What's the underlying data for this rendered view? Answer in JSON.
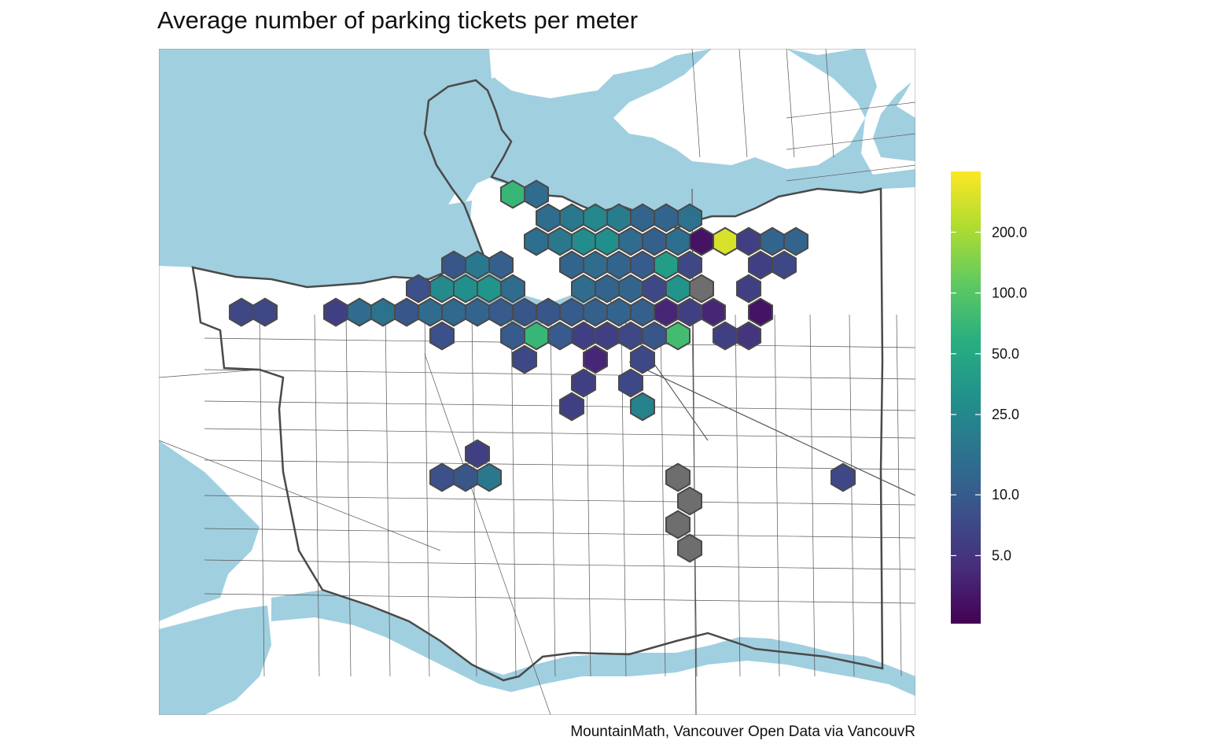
{
  "title": "Average number of parking tickets per meter",
  "caption": "MountainMath, Vancouver Open Data via VancouvR",
  "colors": {
    "water": "#a0cfe0",
    "land": "#ffffff",
    "road": "#444444",
    "boundary": "#4a4a4a",
    "na_fill": "#6e6e6e",
    "hex_outline": "#4a4a4a",
    "palette": [
      "#440154",
      "#472d7b",
      "#3b528b",
      "#2c728e",
      "#21918c",
      "#28ae80",
      "#5ec962",
      "#addc30",
      "#fde725"
    ]
  },
  "legend": {
    "title": "",
    "scale": "log",
    "domain": [
      2.3,
      400
    ],
    "ticks": [
      {
        "value": 5,
        "label": "5.0"
      },
      {
        "value": 10,
        "label": "10.0"
      },
      {
        "value": 25,
        "label": "25.0"
      },
      {
        "value": 50,
        "label": "50.0"
      },
      {
        "value": 100,
        "label": "100.0"
      },
      {
        "value": 200,
        "label": "200.0"
      }
    ]
  },
  "cells": [
    {
      "c": 1,
      "r": 5,
      "v": 7
    },
    {
      "c": 2,
      "r": 5,
      "v": 7
    },
    {
      "c": 5,
      "r": 5,
      "v": 6
    },
    {
      "c": 6,
      "r": 5,
      "v": 14
    },
    {
      "c": 7,
      "r": 5,
      "v": 16
    },
    {
      "c": 8,
      "r": 5,
      "v": 9
    },
    {
      "c": 9,
      "r": 5,
      "v": 14
    },
    {
      "c": 10,
      "r": 5,
      "v": 13
    },
    {
      "c": 11,
      "r": 5,
      "v": 12
    },
    {
      "c": 12,
      "r": 5,
      "v": 10
    },
    {
      "c": 13,
      "r": 5,
      "v": 9
    },
    {
      "c": 14,
      "r": 5,
      "v": 9
    },
    {
      "c": 15,
      "r": 5,
      "v": 10
    },
    {
      "c": 16,
      "r": 5,
      "v": 11
    },
    {
      "c": 17,
      "r": 5,
      "v": 12
    },
    {
      "c": 18,
      "r": 5,
      "v": 11
    },
    {
      "c": 19,
      "r": 5,
      "v": 4
    },
    {
      "c": 20,
      "r": 5,
      "v": 6
    },
    {
      "c": 21,
      "r": 5,
      "v": 4
    },
    {
      "c": 23,
      "r": 5,
      "v": 3
    },
    {
      "c": 9,
      "r": 4,
      "v": 8
    },
    {
      "c": 10,
      "r": 4,
      "v": 26
    },
    {
      "c": 11,
      "r": 4,
      "v": 30
    },
    {
      "c": 12,
      "r": 4,
      "v": 33
    },
    {
      "c": 13,
      "r": 4,
      "v": 14
    },
    {
      "c": 17,
      "r": 4,
      "v": 12
    },
    {
      "c": 18,
      "r": 4,
      "v": 12
    },
    {
      "c": 19,
      "r": 4,
      "v": 7
    },
    {
      "c": 20,
      "r": 4,
      "v": 33
    },
    {
      "c": 21,
      "r": 4,
      "v": null
    },
    {
      "c": 23,
      "r": 4,
      "v": 6
    },
    {
      "c": 10,
      "r": 3,
      "v": 9
    },
    {
      "c": 11,
      "r": 3,
      "v": 18
    },
    {
      "c": 12,
      "r": 3,
      "v": 11
    },
    {
      "c": 19,
      "r": 3,
      "v": 40
    },
    {
      "c": 20,
      "r": 3,
      "v": 7
    },
    {
      "c": 23,
      "r": 3,
      "v": 6
    },
    {
      "c": 10,
      "r": 6,
      "v": 8
    },
    {
      "c": 13,
      "r": 6,
      "v": 10
    },
    {
      "c": 14,
      "r": 6,
      "v": 70
    },
    {
      "c": 15,
      "r": 6,
      "v": 10
    },
    {
      "c": 16,
      "r": 6,
      "v": 6
    },
    {
      "c": 17,
      "r": 6,
      "v": 6
    },
    {
      "c": 18,
      "r": 6,
      "v": 7
    },
    {
      "c": 19,
      "r": 6,
      "v": 9
    },
    {
      "c": 20,
      "r": 6,
      "v": 80
    },
    {
      "c": 22,
      "r": 6,
      "v": 6
    },
    {
      "c": 23,
      "r": 6,
      "v": 5
    },
    {
      "c": 13,
      "r": 7,
      "v": 7
    },
    {
      "c": 16,
      "r": 7,
      "v": 4
    },
    {
      "c": 18,
      "r": 7,
      "v": 7
    },
    {
      "c": 16,
      "r": 8,
      "v": 6
    },
    {
      "c": 18,
      "r": 8,
      "v": 7
    },
    {
      "c": 15,
      "r": 9,
      "v": 6
    },
    {
      "c": 18,
      "r": 9,
      "v": 22
    },
    {
      "c": 11,
      "r": 11,
      "v": 6
    },
    {
      "c": 10,
      "r": 12,
      "v": 8
    },
    {
      "c": 11,
      "r": 12,
      "v": 9
    },
    {
      "c": 12,
      "r": 12,
      "v": 18
    },
    {
      "c": 27,
      "r": 12,
      "v": 7
    },
    {
      "c": 20,
      "r": 12,
      "v": null
    },
    {
      "c": 20,
      "r": 13,
      "v": null
    },
    {
      "c": 20,
      "r": 14,
      "v": null
    },
    {
      "c": 20,
      "r": 15,
      "v": null
    },
    {
      "c": 13,
      "r": 0,
      "v": 70
    },
    {
      "c": 14,
      "r": 0,
      "v": 14
    },
    {
      "c": 14,
      "r": 1,
      "v": 14
    },
    {
      "c": 15,
      "r": 1,
      "v": 18
    },
    {
      "c": 16,
      "r": 1,
      "v": 25
    },
    {
      "c": 17,
      "r": 1,
      "v": 20
    },
    {
      "c": 18,
      "r": 1,
      "v": 12
    },
    {
      "c": 19,
      "r": 1,
      "v": 12
    },
    {
      "c": 20,
      "r": 1,
      "v": 16
    },
    {
      "c": 14,
      "r": 2,
      "v": 15
    },
    {
      "c": 15,
      "r": 2,
      "v": 18
    },
    {
      "c": 16,
      "r": 2,
      "v": 28
    },
    {
      "c": 17,
      "r": 2,
      "v": 30
    },
    {
      "c": 18,
      "r": 2,
      "v": 14
    },
    {
      "c": 19,
      "r": 2,
      "v": 11
    },
    {
      "c": 20,
      "r": 2,
      "v": 15
    },
    {
      "c": 21,
      "r": 2,
      "v": 3
    },
    {
      "c": 22,
      "r": 2,
      "v": 300
    },
    {
      "c": 23,
      "r": 2,
      "v": 6
    },
    {
      "c": 24,
      "r": 2,
      "v": 12
    },
    {
      "c": 25,
      "r": 2,
      "v": 12
    },
    {
      "c": 15,
      "r": 3,
      "v": 12
    },
    {
      "c": 16,
      "r": 3,
      "v": 14
    },
    {
      "c": 17,
      "r": 3,
      "v": 12
    },
    {
      "c": 18,
      "r": 3,
      "v": 10
    },
    {
      "c": 24,
      "r": 3,
      "v": 7
    },
    {
      "c": 16,
      "r": 4,
      "v": 14
    }
  ]
}
